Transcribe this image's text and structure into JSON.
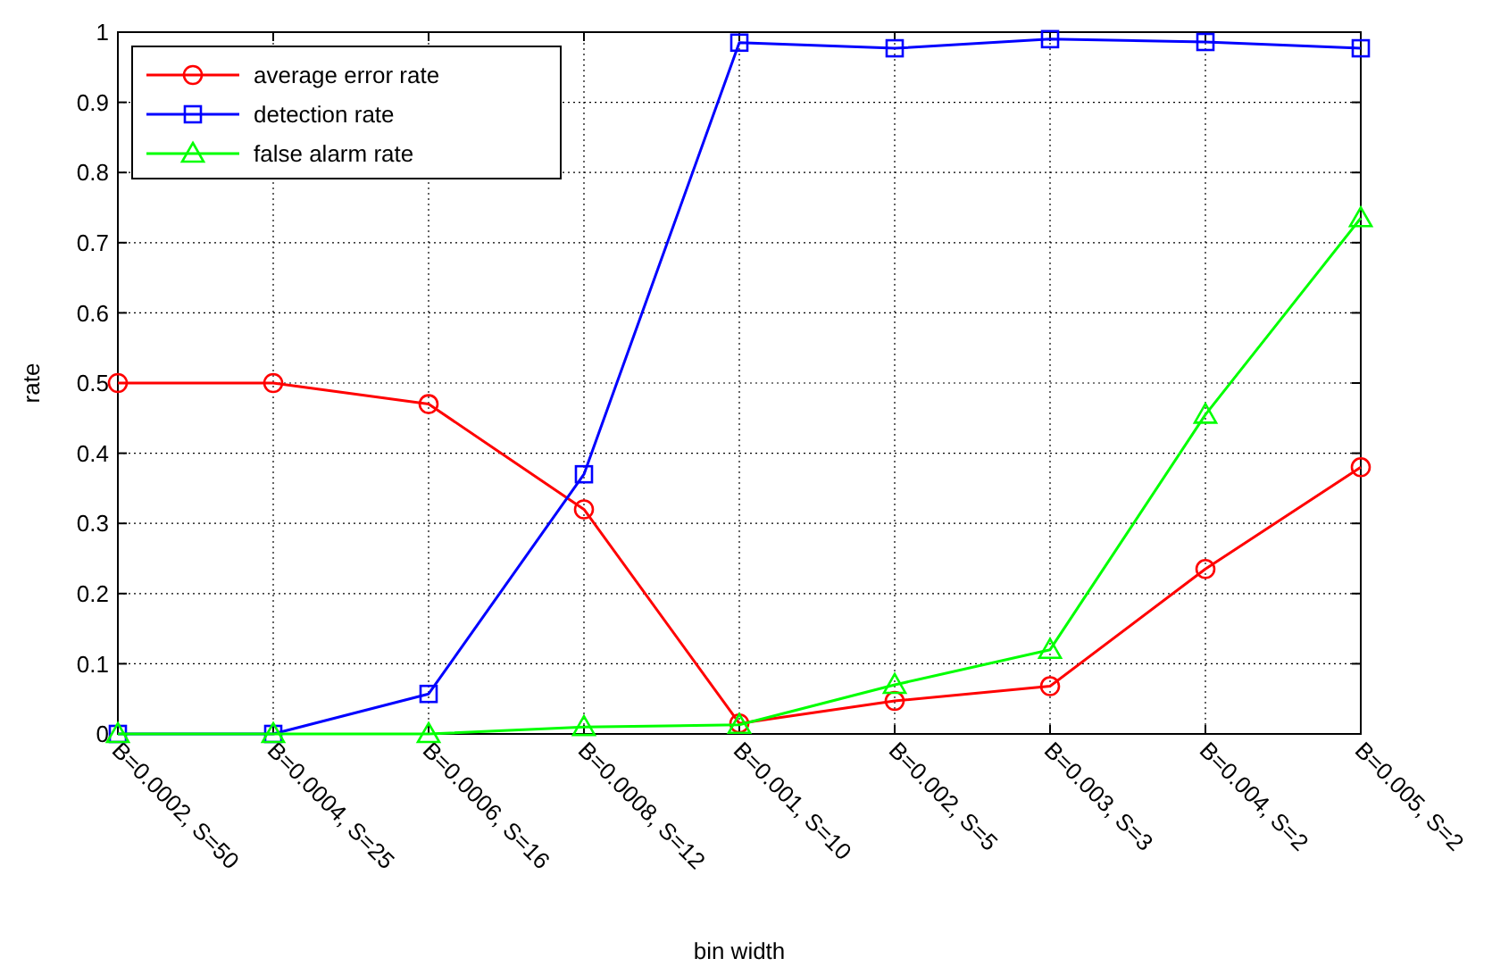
{
  "chart_data": {
    "type": "line",
    "xlabel": "bin width",
    "ylabel": "rate",
    "categories": [
      "B=0.0002, S=50",
      "B=0.0004, S=25",
      "B=0.0006, S=16",
      "B=0.0008, S=12",
      "B=0.001, S=10",
      "B=0.002, S=5",
      "B=0.003, S=3",
      "B=0.004, S=2",
      "B=0.005, S=2"
    ],
    "series": [
      {
        "name": "average error rate",
        "color": "#ff0000",
        "marker": "circle",
        "values": [
          0.5,
          0.5,
          0.47,
          0.32,
          0.015,
          0.047,
          0.068,
          0.235,
          0.38
        ]
      },
      {
        "name": "detection rate",
        "color": "#0000ff",
        "marker": "square",
        "values": [
          0,
          0,
          0.057,
          0.37,
          0.985,
          0.977,
          0.99,
          0.986,
          0.977
        ]
      },
      {
        "name": "false alarm rate",
        "color": "#00ff00",
        "marker": "triangle",
        "values": [
          0,
          0,
          0,
          0.01,
          0.013,
          0.07,
          0.12,
          0.455,
          0.735
        ]
      }
    ],
    "ylim": [
      0,
      1
    ],
    "yticks": [
      0,
      0.1,
      0.2,
      0.3,
      0.4,
      0.5,
      0.6,
      0.7,
      0.8,
      0.9,
      1
    ],
    "grid": true,
    "legend": "top left",
    "line_style": "solid"
  }
}
